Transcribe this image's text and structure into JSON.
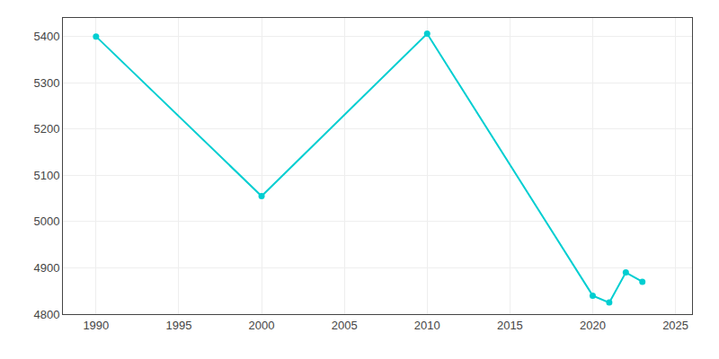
{
  "chart_data": {
    "type": "line",
    "x": [
      1990,
      2000,
      2010,
      2020,
      2021,
      2022,
      2023
    ],
    "values": [
      5400,
      5055,
      5406,
      4840,
      4825,
      4890,
      4870
    ],
    "color": "#00CED1",
    "marker": "circle",
    "xlim": [
      1988,
      2026
    ],
    "ylim": [
      4800,
      5440
    ],
    "xticks": [
      1990,
      1995,
      2000,
      2005,
      2010,
      2015,
      2020,
      2025
    ],
    "yticks": [
      4800,
      4900,
      5000,
      5100,
      5200,
      5300,
      5400
    ],
    "grid": true
  }
}
